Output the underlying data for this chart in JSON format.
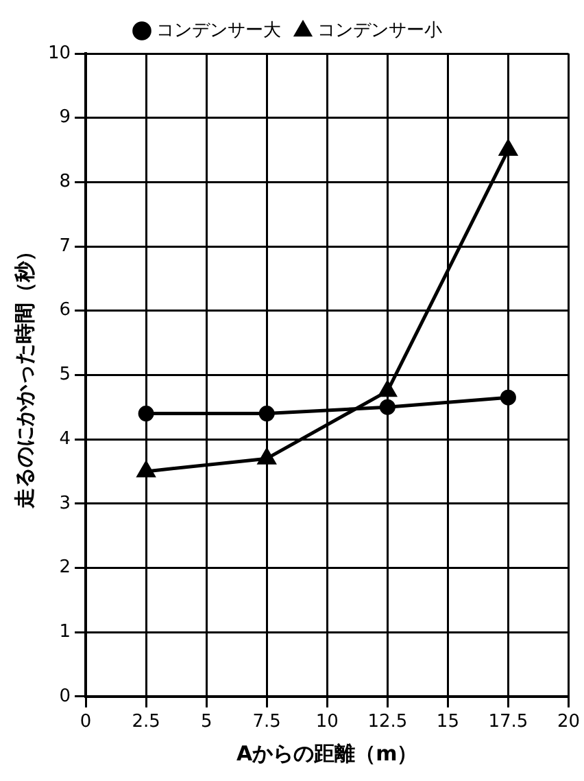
{
  "chart_data": {
    "type": "line",
    "xlabel": "Aからの距離（m）",
    "ylabel": "走るのにかかった時間（秒）",
    "x": [
      2.5,
      7.5,
      12.5,
      17.5
    ],
    "series": [
      {
        "name": "コンデンサー大",
        "color": "#000000",
        "marker": "circle",
        "values": [
          4.4,
          4.4,
          4.5,
          4.65
        ]
      },
      {
        "name": "コンデンサー小",
        "color": "#000000",
        "marker": "triangle",
        "values": [
          3.5,
          3.7,
          4.75,
          8.5
        ]
      }
    ],
    "xlim": [
      0,
      20
    ],
    "xticks": [
      0,
      2.5,
      5,
      7.5,
      10,
      12.5,
      15,
      17.5,
      20
    ],
    "ylim": [
      0,
      10
    ],
    "yticks": [
      0,
      1,
      2,
      3,
      4,
      5,
      6,
      7,
      8,
      9,
      10
    ],
    "grid": true,
    "legend": "top",
    "line_style": "solid"
  }
}
